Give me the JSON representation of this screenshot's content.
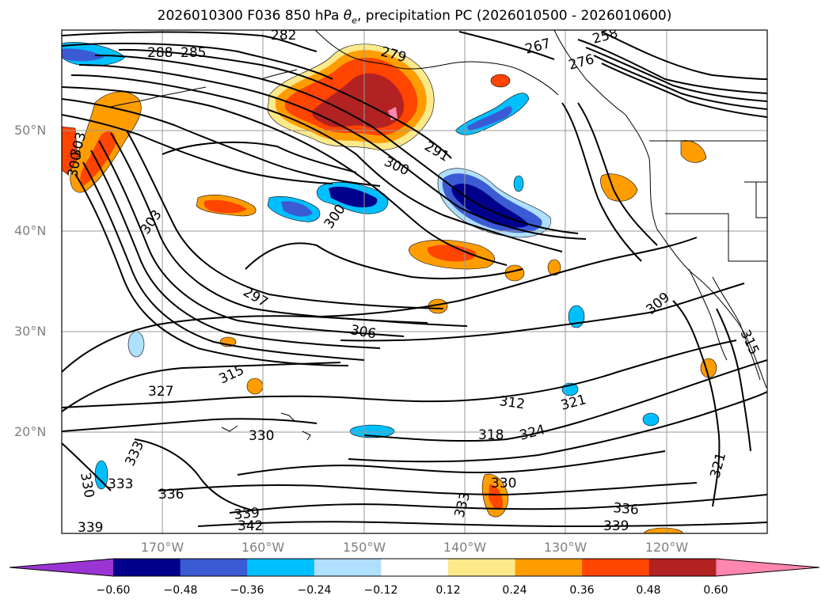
{
  "title_prefix": "2026010300 F036 850 hPa",
  "title_symbol": "θ",
  "title_subscript": "e",
  "title_suffix": ", precipitation PC (2026010500 - 2026010600)",
  "map": {
    "extent": {
      "lon_min": -180,
      "lon_max": -110,
      "lat_min": 10,
      "lat_max": 60
    },
    "lat_labels": [
      "50°N",
      "40°N",
      "30°N",
      "20°N"
    ],
    "lon_labels": [
      "170°W",
      "160°W",
      "150°W",
      "140°W",
      "130°W",
      "120°W"
    ],
    "contour_labels": [
      "282",
      "279",
      "285",
      "288",
      "276",
      "267",
      "258",
      "291",
      "300",
      "303",
      "300",
      "303",
      "297",
      "306",
      "309",
      "315",
      "315",
      "327",
      "312",
      "321",
      "318",
      "324",
      "330",
      "333",
      "333",
      "330",
      "336",
      "330",
      "336",
      "339",
      "342",
      "339",
      "339",
      "333",
      "321"
    ],
    "shading_colors": {
      "neg_060": "#9a35d3",
      "neg_048": "#00008c",
      "neg_036": "#3b5bd5",
      "neg_024": "#00bfff",
      "neg_012": "#b0e0ff",
      "pos_012": "#fbe98a",
      "pos_024": "#ff9d00",
      "pos_036": "#ff4500",
      "pos_048": "#b22222",
      "pos_060": "#ff86ae"
    }
  },
  "colorbar": {
    "ticks": [
      "−0.60",
      "−0.48",
      "−0.36",
      "−0.24",
      "−0.12",
      "0.12",
      "0.24",
      "0.36",
      "0.48",
      "0.60"
    ],
    "colors": [
      "#9a35d3",
      "#00008c",
      "#3b5bd5",
      "#00bfff",
      "#b0e0ff",
      "#ffffff",
      "#fbe98a",
      "#ff9d00",
      "#ff4500",
      "#b22222",
      "#ff86ae"
    ]
  }
}
